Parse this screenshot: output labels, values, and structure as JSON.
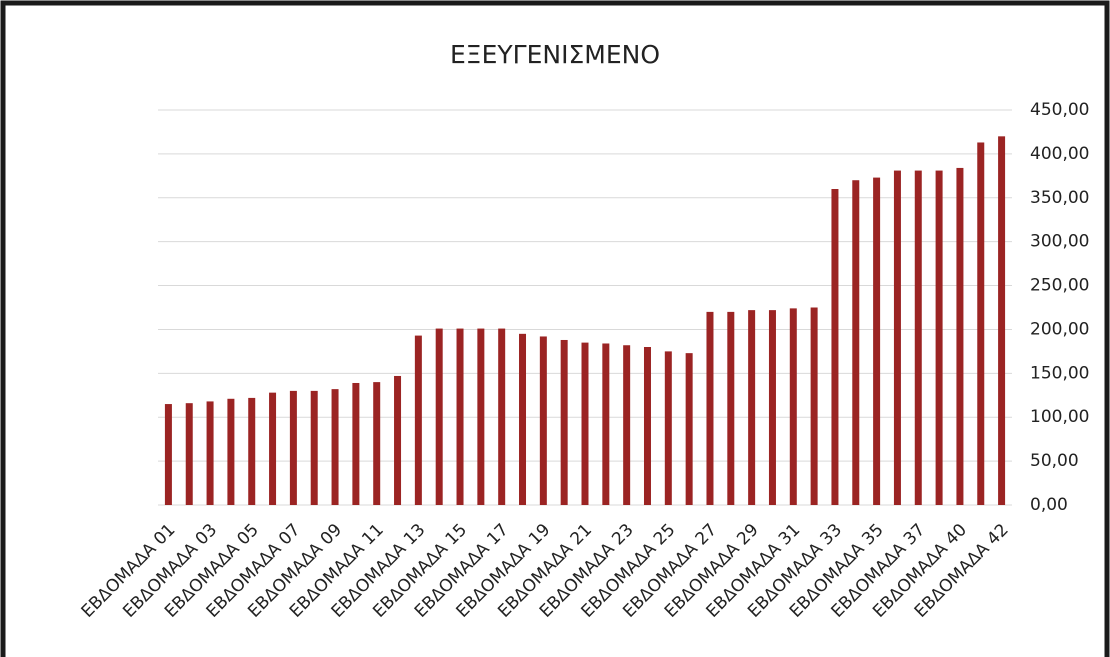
{
  "chart_data": {
    "type": "bar",
    "title": "ΕΞΕΥΓΕΝΙΣΜΕΝΟ",
    "categories": [
      "ΕΒΔΟΜΑΔΑ 01",
      null,
      "ΕΒΔΟΜΑΔΑ 03",
      null,
      "ΕΒΔΟΜΑΔΑ 05",
      null,
      "ΕΒΔΟΜΑΔΑ 07",
      null,
      "ΕΒΔΟΜΑΔΑ 09",
      null,
      "ΕΒΔΟΜΑΔΑ 11",
      null,
      "ΕΒΔΟΜΑΔΑ 13",
      null,
      "ΕΒΔΟΜΑΔΑ 15",
      null,
      "ΕΒΔΟΜΑΔΑ 17",
      null,
      "ΕΒΔΟΜΑΔΑ 19",
      null,
      "ΕΒΔΟΜΑΔΑ 21",
      null,
      "ΕΒΔΟΜΑΔΑ 23",
      null,
      "ΕΒΔΟΜΑΔΑ 25",
      null,
      "ΕΒΔΟΜΑΔΑ 27",
      null,
      "ΕΒΔΟΜΑΔΑ 29",
      null,
      "ΕΒΔΟΜΑΔΑ 31",
      null,
      "ΕΒΔΟΜΑΔΑ 33",
      null,
      "ΕΒΔΟΜΑΔΑ 35",
      null,
      "ΕΒΔΟΜΑΔΑ 37",
      null,
      "ΕΒΔΟΜΑΔΑ 40",
      null,
      "ΕΒΔΟΜΑΔΑ 42"
    ],
    "values": [
      115,
      116,
      118,
      121,
      122,
      128,
      130,
      130,
      132,
      139,
      140,
      147,
      193,
      201,
      201,
      201,
      201,
      195,
      192,
      188,
      185,
      184,
      182,
      180,
      175,
      173,
      220,
      220,
      222,
      222,
      224,
      225,
      360,
      370,
      373,
      381,
      381,
      381,
      384,
      413,
      420
    ],
    "color": "#9b2423",
    "ylim": [
      0,
      450
    ],
    "yticks": [
      {
        "value": 0,
        "label": "0,00"
      },
      {
        "value": 50,
        "label": "50,00"
      },
      {
        "value": 100,
        "label": "100,00"
      },
      {
        "value": 150,
        "label": "150,00"
      },
      {
        "value": 200,
        "label": "200,00"
      },
      {
        "value": 250,
        "label": "250,00"
      },
      {
        "value": 300,
        "label": "300,00"
      },
      {
        "value": 350,
        "label": "350,00"
      },
      {
        "value": 400,
        "label": "400,00"
      },
      {
        "value": 450,
        "label": "450,00"
      }
    ],
    "grid": true,
    "y_axis_side": "right"
  }
}
